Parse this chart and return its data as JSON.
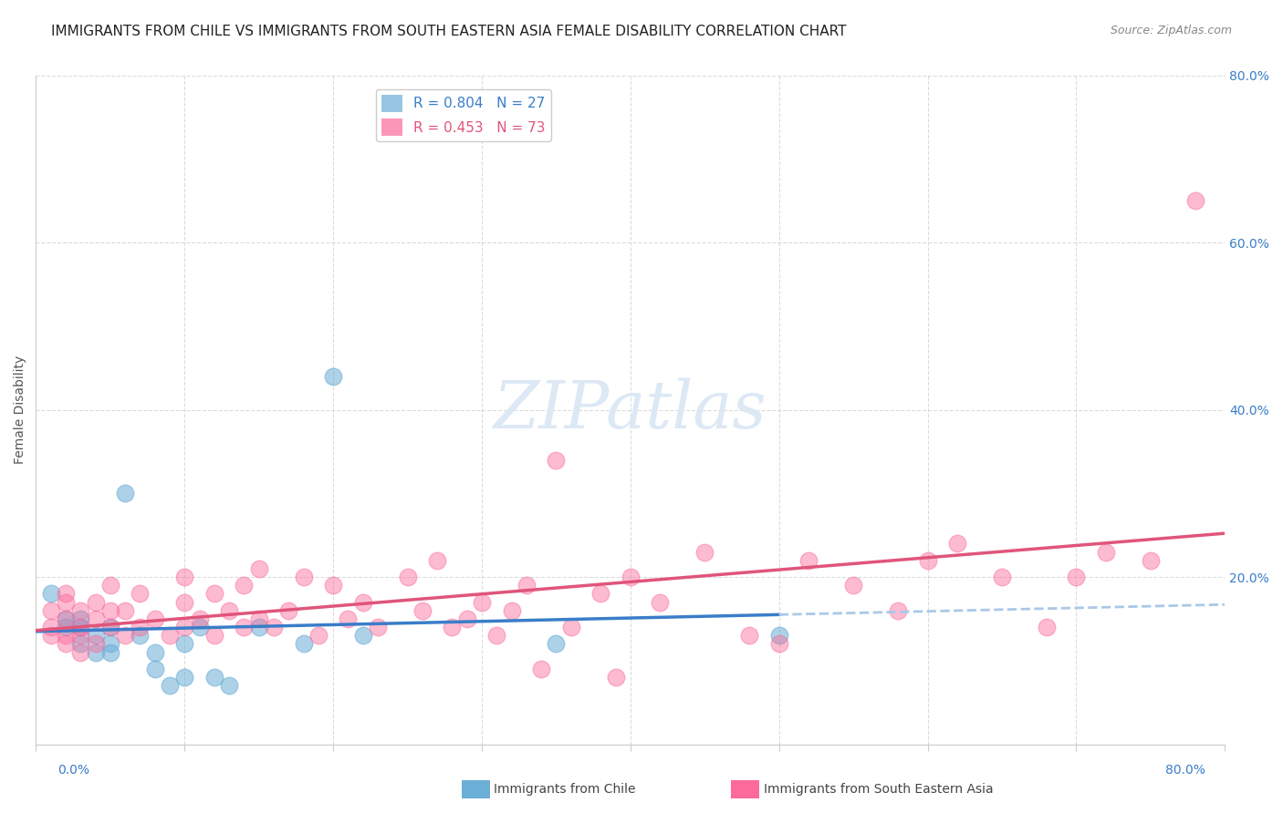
{
  "title": "IMMIGRANTS FROM CHILE VS IMMIGRANTS FROM SOUTH EASTERN ASIA FEMALE DISABILITY CORRELATION CHART",
  "source": "Source: ZipAtlas.com",
  "ylabel": "Female Disability",
  "xlim": [
    0.0,
    0.8
  ],
  "ylim": [
    0.0,
    0.8
  ],
  "chile_color": "#6baed6",
  "sea_color": "#fb6a9a",
  "chile_line_color": "#3a7dc9",
  "sea_line_color": "#e0557a",
  "chile_dash_color": "#aac8e8",
  "chile_R": 0.804,
  "chile_N": 27,
  "sea_R": 0.453,
  "sea_N": 73,
  "legend_label_chile": "Immigrants from Chile",
  "legend_label_sea": "Immigrants from South Eastern Asia",
  "chile_scatter_x": [
    0.01,
    0.02,
    0.02,
    0.03,
    0.03,
    0.03,
    0.04,
    0.04,
    0.05,
    0.05,
    0.05,
    0.06,
    0.07,
    0.08,
    0.08,
    0.09,
    0.1,
    0.1,
    0.11,
    0.12,
    0.13,
    0.15,
    0.18,
    0.2,
    0.22,
    0.35,
    0.5
  ],
  "chile_scatter_y": [
    0.18,
    0.14,
    0.15,
    0.12,
    0.14,
    0.15,
    0.13,
    0.11,
    0.11,
    0.12,
    0.14,
    0.3,
    0.13,
    0.11,
    0.09,
    0.07,
    0.12,
    0.08,
    0.14,
    0.08,
    0.07,
    0.14,
    0.12,
    0.44,
    0.13,
    0.12,
    0.13
  ],
  "sea_scatter_x": [
    0.01,
    0.01,
    0.01,
    0.02,
    0.02,
    0.02,
    0.02,
    0.02,
    0.03,
    0.03,
    0.03,
    0.03,
    0.04,
    0.04,
    0.04,
    0.05,
    0.05,
    0.05,
    0.06,
    0.06,
    0.07,
    0.07,
    0.08,
    0.09,
    0.1,
    0.1,
    0.1,
    0.11,
    0.12,
    0.12,
    0.13,
    0.14,
    0.14,
    0.15,
    0.15,
    0.16,
    0.17,
    0.18,
    0.19,
    0.2,
    0.21,
    0.22,
    0.23,
    0.25,
    0.26,
    0.27,
    0.28,
    0.29,
    0.3,
    0.31,
    0.32,
    0.33,
    0.34,
    0.35,
    0.36,
    0.38,
    0.39,
    0.4,
    0.42,
    0.45,
    0.48,
    0.5,
    0.52,
    0.55,
    0.58,
    0.6,
    0.62,
    0.65,
    0.68,
    0.7,
    0.72,
    0.75,
    0.78
  ],
  "sea_scatter_y": [
    0.13,
    0.14,
    0.16,
    0.12,
    0.13,
    0.15,
    0.17,
    0.18,
    0.11,
    0.13,
    0.14,
    0.16,
    0.12,
    0.15,
    0.17,
    0.14,
    0.16,
    0.19,
    0.13,
    0.16,
    0.14,
    0.18,
    0.15,
    0.13,
    0.14,
    0.17,
    0.2,
    0.15,
    0.13,
    0.18,
    0.16,
    0.14,
    0.19,
    0.15,
    0.21,
    0.14,
    0.16,
    0.2,
    0.13,
    0.19,
    0.15,
    0.17,
    0.14,
    0.2,
    0.16,
    0.22,
    0.14,
    0.15,
    0.17,
    0.13,
    0.16,
    0.19,
    0.09,
    0.34,
    0.14,
    0.18,
    0.08,
    0.2,
    0.17,
    0.23,
    0.13,
    0.12,
    0.22,
    0.19,
    0.16,
    0.22,
    0.24,
    0.2,
    0.14,
    0.2,
    0.23,
    0.22,
    0.65
  ],
  "background_color": "#ffffff",
  "grid_color": "#cccccc",
  "title_fontsize": 11,
  "axis_label_fontsize": 10,
  "tick_fontsize": 10,
  "legend_fontsize": 11,
  "right_tick_color": "#3a7dc9",
  "watermark_text": "ZIPatlas",
  "watermark_color": "#dde8f5"
}
